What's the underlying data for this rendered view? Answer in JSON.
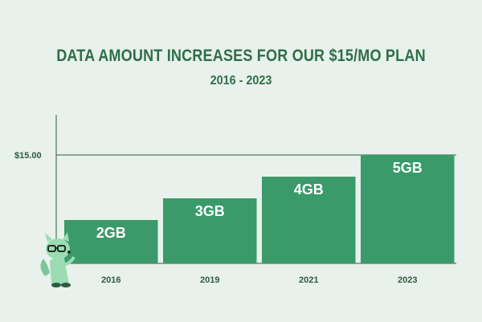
{
  "colors": {
    "background": "#e8f1ec",
    "bar": "#3a9a6a",
    "axis": "#2f5b40",
    "title": "#2f6e4a",
    "mascot": "#8fd4a8"
  },
  "mascot_icon": "raccoon-mascot-with-glasses",
  "chart_data": {
    "type": "bar",
    "title": "DATA AMOUNT INCREASES FOR OUR $15/MO PLAN",
    "subtitle": "2016 - 2023",
    "categories": [
      "2016",
      "2019",
      "2021",
      "2023"
    ],
    "values": [
      2,
      3,
      4,
      5
    ],
    "data_labels": [
      "2GB",
      "3GB",
      "4GB",
      "5GB"
    ],
    "reference_line": {
      "value": 5,
      "label": "$15.00"
    },
    "xlabel": "",
    "ylabel": "",
    "ylim": [
      0,
      5
    ],
    "grid": false,
    "legend": "none"
  }
}
